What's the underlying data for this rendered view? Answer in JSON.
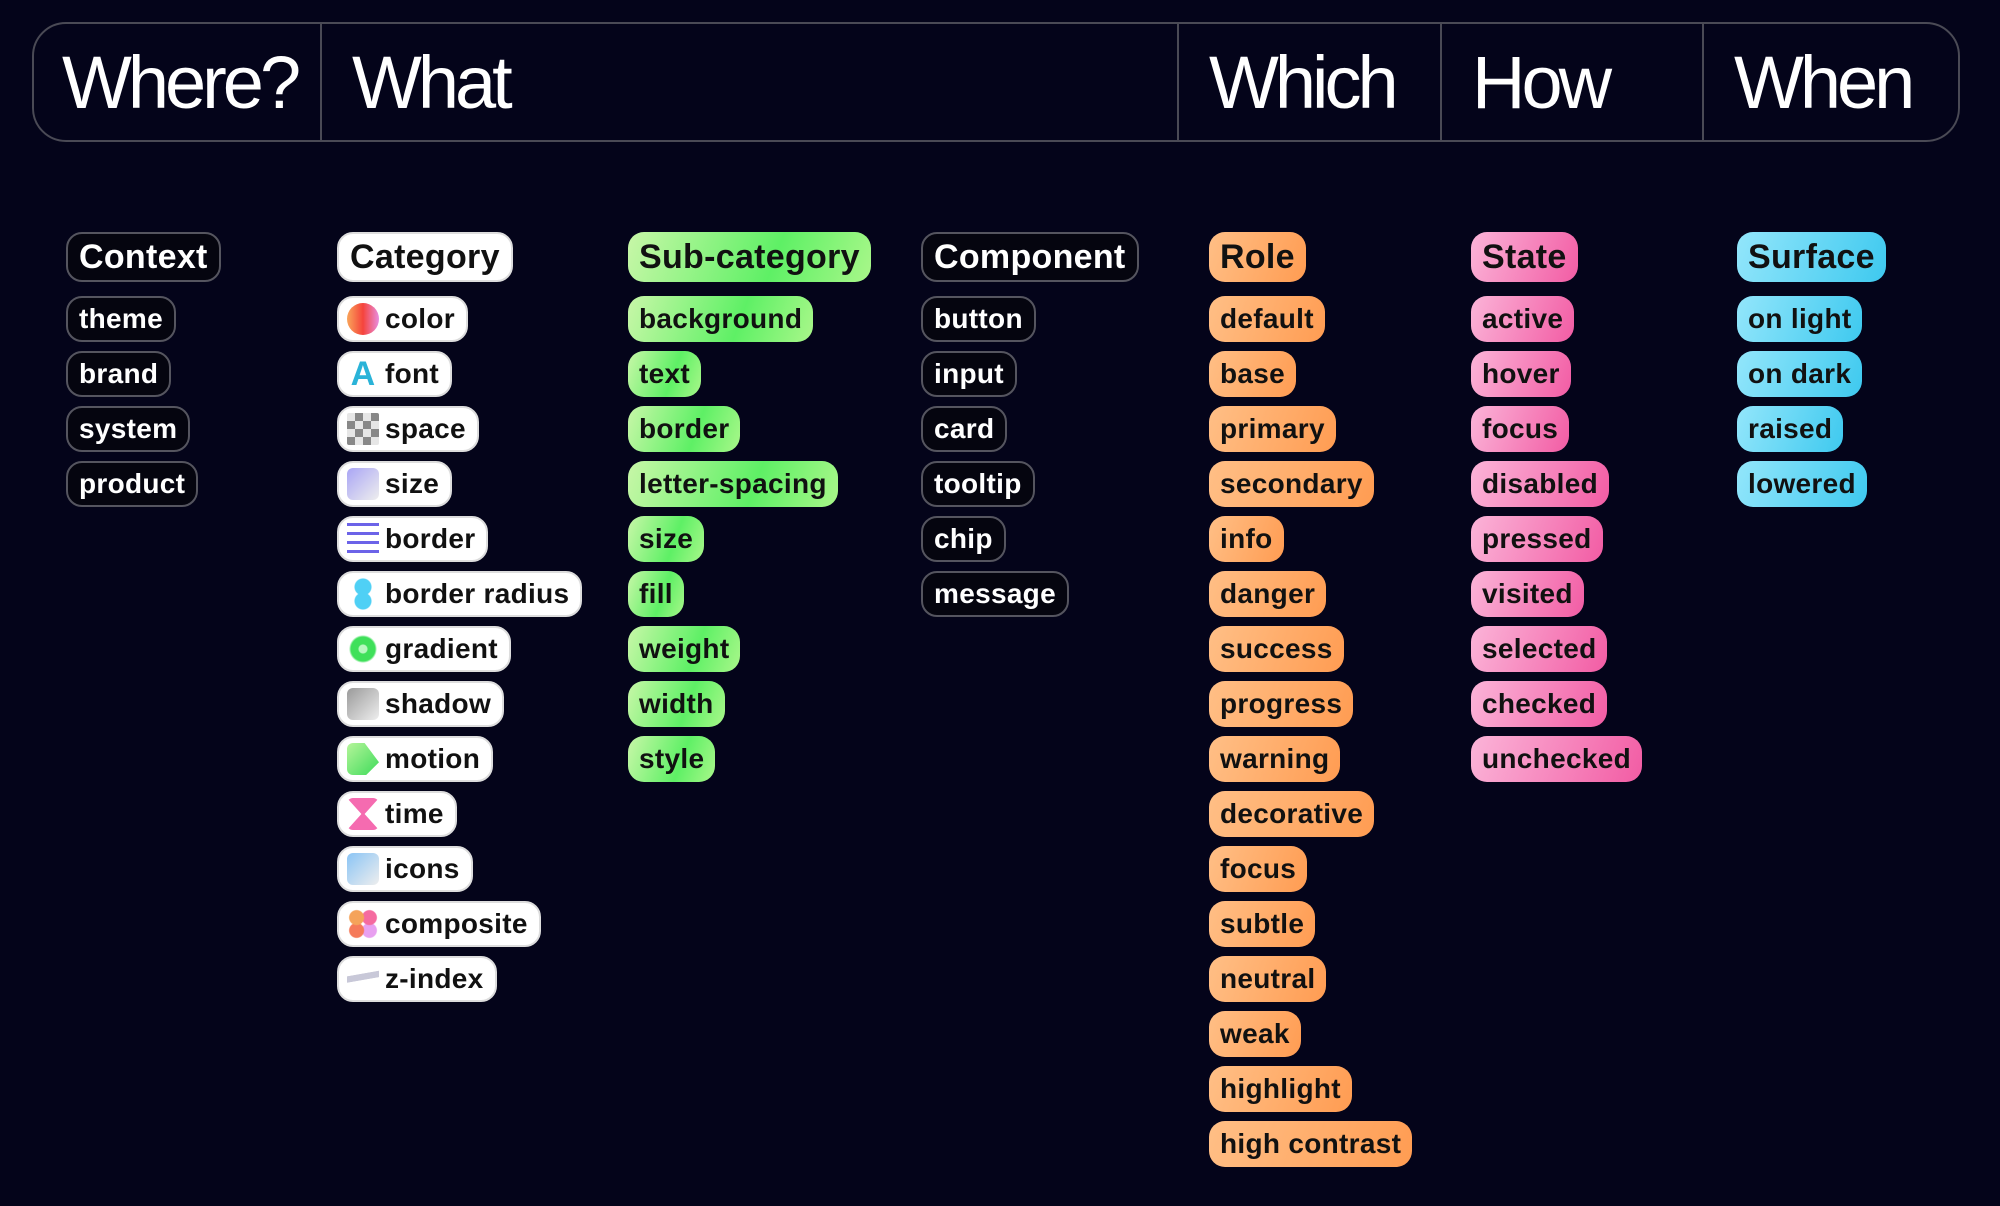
{
  "header": {
    "cells": [
      "Where?",
      "What",
      "Which",
      "How",
      "When"
    ]
  },
  "columns": [
    {
      "title": "Context",
      "style": "dark",
      "items": [
        "theme",
        "brand",
        "system",
        "product"
      ]
    },
    {
      "title": "Category",
      "style": "white",
      "items": [
        {
          "label": "color",
          "icon": "color-circle-icon",
          "color": "#f55a3c"
        },
        {
          "label": "font",
          "icon": "letter-a-icon",
          "color": "#2ab3d8"
        },
        {
          "label": "space",
          "icon": "checkerboard-icon",
          "color": "#999999"
        },
        {
          "label": "size",
          "icon": "shapes-icon",
          "color": "#a9a5f5"
        },
        {
          "label": "border",
          "icon": "border-lines-icon",
          "color": "#6c63e8"
        },
        {
          "label": "border radius",
          "icon": "rounded-blob-icon",
          "color": "#4fd0f5"
        },
        {
          "label": "gradient",
          "icon": "flower-icon",
          "color": "#3fe05a"
        },
        {
          "label": "shadow",
          "icon": "shadow-icon",
          "color": "#9a9a9a"
        },
        {
          "label": "motion",
          "icon": "motion-icon",
          "color": "#3edb5a"
        },
        {
          "label": "time",
          "icon": "hourglass-icon",
          "color": "#f56bb0"
        },
        {
          "label": "icons",
          "icon": "icons-grid-icon",
          "color": "#8ac4f5"
        },
        {
          "label": "composite",
          "icon": "composite-icon",
          "color": "#f5905a"
        },
        {
          "label": "z-index",
          "icon": "layers-icon",
          "color": "#b0b0c0"
        }
      ]
    },
    {
      "title": "Sub-category",
      "style": "green",
      "items": [
        "background",
        "text",
        "border",
        "letter-spacing",
        "size",
        "fill",
        "weight",
        "width",
        "style"
      ]
    },
    {
      "title": "Component",
      "style": "dark",
      "items": [
        "button",
        "input",
        "card",
        "tooltip",
        "chip",
        "message"
      ]
    },
    {
      "title": "Role",
      "style": "orange",
      "items": [
        "default",
        "base",
        "primary",
        "secondary",
        "info",
        "danger",
        "success",
        "progress",
        "warning",
        "decorative",
        "focus",
        "subtle",
        "neutral",
        "weak",
        "highlight",
        "high contrast"
      ]
    },
    {
      "title": "State",
      "style": "pink",
      "items": [
        "active",
        "hover",
        "focus",
        "disabled",
        "pressed",
        "visited",
        "selected",
        "checked",
        "unchecked"
      ]
    },
    {
      "title": "Surface",
      "style": "cyan",
      "items": [
        "on light",
        "on dark",
        "raised",
        "lowered"
      ]
    }
  ]
}
